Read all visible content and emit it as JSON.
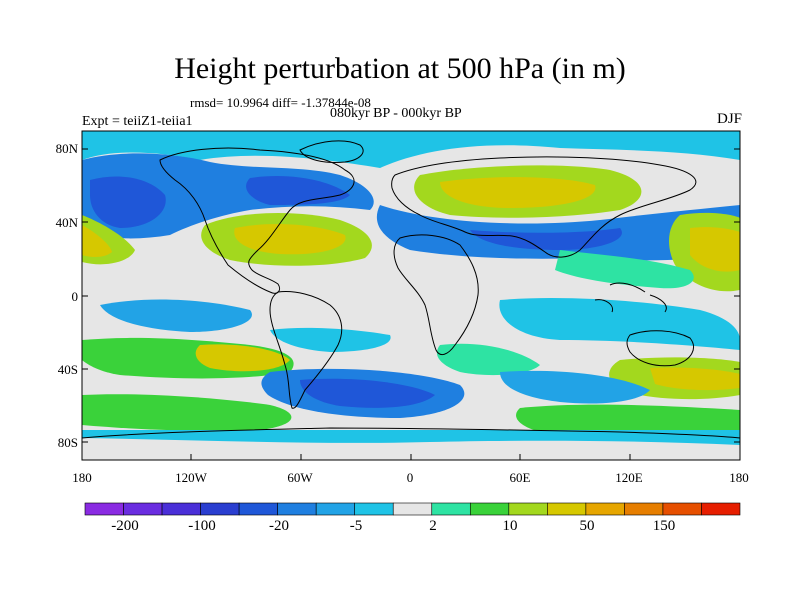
{
  "title": "Height perturbation at 500 hPa (in m)",
  "stats_line": "rmsd= 10.9964 diff= -1.37844e-08",
  "periods": "080kyr BP - 000kyr BP",
  "experiment": "Expt = teiiZ1-teiia1",
  "season": "DJF",
  "lat_ticks": [
    "80N",
    "40N",
    "0",
    "40S",
    "80S"
  ],
  "lon_ticks": [
    "180",
    "120W",
    "60W",
    "0",
    "60E",
    "120E",
    "180"
  ],
  "colorbar": {
    "labels": [
      "-200",
      "-100",
      "-20",
      "-5",
      "2",
      "10",
      "50",
      "150"
    ],
    "colors": [
      "#8a2be2",
      "#6a2de0",
      "#4a2fd8",
      "#2a3ed0",
      "#1f57d8",
      "#1f7fe0",
      "#22a3e6",
      "#1fc3e6",
      "#e6e6e6",
      "#2ee3a3",
      "#3ad23a",
      "#a3d81e",
      "#d6c800",
      "#e6a600",
      "#e67e00",
      "#e64f00",
      "#e61e00"
    ]
  },
  "colors": {
    "neutral": "#e6e6e6",
    "cyan": "#1fc3e6",
    "lightblue": "#22a3e6",
    "blue": "#1f7fe0",
    "deepblue": "#1f57d8",
    "teal": "#2ee3a3",
    "green": "#3ad23a",
    "lime": "#a3d81e",
    "yellow": "#d6c800"
  }
}
